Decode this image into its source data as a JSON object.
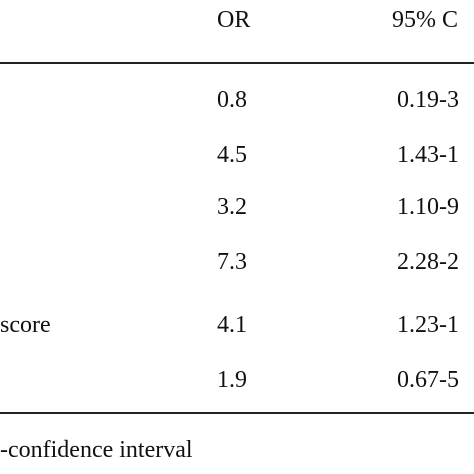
{
  "table": {
    "header": [
      "OR",
      "95% C"
    ],
    "rows": [
      [
        "",
        "0.8",
        "0.19-3"
      ],
      [
        "",
        "4.5",
        "1.43-1"
      ],
      [
        "",
        "3.2",
        "1.10-9"
      ],
      [
        "",
        "7.3",
        "2.28-2"
      ],
      [
        "score",
        "4.1",
        "1.23-1"
      ],
      [
        "",
        "1.9",
        "0.67-5"
      ]
    ]
  },
  "footnote": "-confidence interval"
}
